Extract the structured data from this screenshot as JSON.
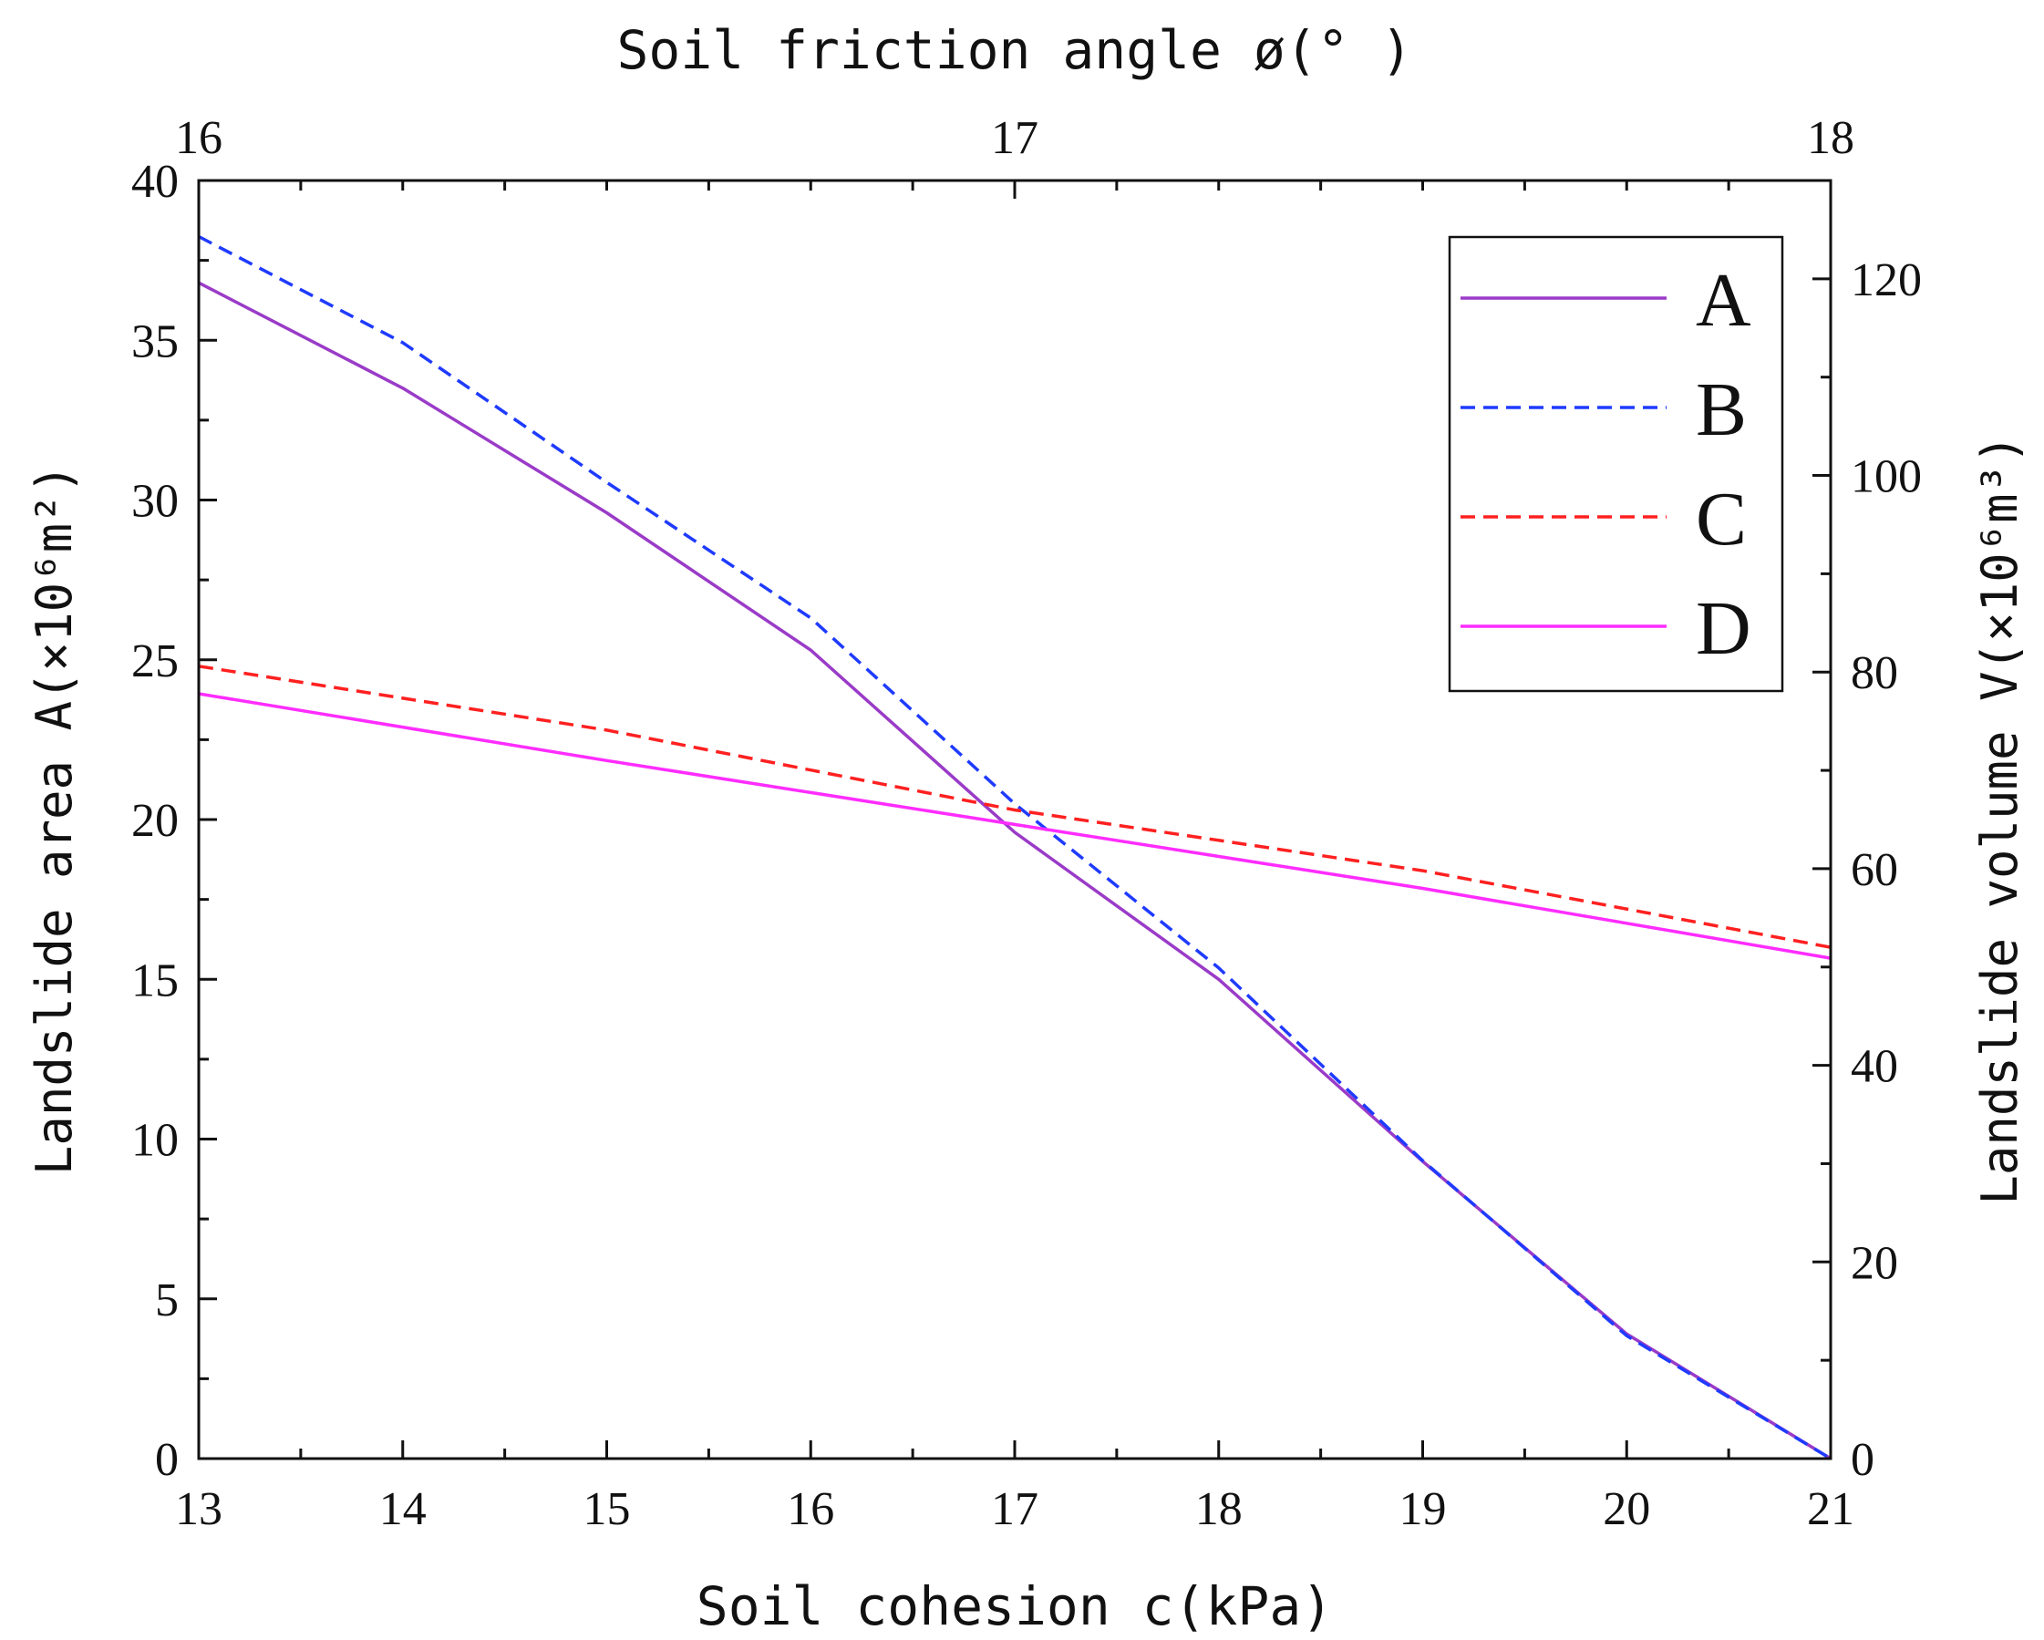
{
  "chart_data": {
    "type": "line",
    "x_bottom": {
      "label": "Soil cohesion c(kPa)",
      "range": [
        13,
        21
      ],
      "ticks": [
        "13",
        "14",
        "15",
        "16",
        "17",
        "18",
        "19",
        "20",
        "21"
      ]
    },
    "x_top": {
      "label": "Soil friction angle ø(° )",
      "range": [
        16,
        18
      ],
      "ticks": [
        "16",
        "17",
        "18"
      ]
    },
    "y_left": {
      "label": "Landslide area A(×10⁶m²)",
      "range": [
        0,
        40
      ],
      "ticks": [
        "0",
        "5",
        "10",
        "15",
        "20",
        "25",
        "30",
        "35",
        "40"
      ]
    },
    "y_right": {
      "label": "Landslide volume V(×10⁶m³)",
      "range": [
        0,
        130
      ],
      "ticks": [
        "0",
        "20",
        "40",
        "60",
        "80",
        "100",
        "120"
      ]
    },
    "legend_position": "top-right",
    "grid": false,
    "series": [
      {
        "name": "A",
        "style": "solid",
        "color": "#9a3bc8",
        "x_axis": "bottom",
        "y_axis": "left",
        "x": [
          13,
          14,
          15,
          16,
          17,
          18,
          19,
          20,
          21
        ],
        "values": [
          36.8,
          33.5,
          29.6,
          25.3,
          19.6,
          15.0,
          9.3,
          3.9,
          0.0
        ]
      },
      {
        "name": "B",
        "style": "dashed",
        "color": "#1f3bff",
        "x_axis": "bottom",
        "y_axis": "right",
        "x": [
          13,
          14,
          15,
          16,
          17,
          18,
          19,
          20,
          21
        ],
        "values": [
          124.3,
          113.5,
          99.3,
          85.5,
          66.6,
          49.9,
          30.3,
          12.5,
          0.0
        ]
      },
      {
        "name": "C",
        "style": "dashed",
        "color": "#ff2020",
        "x_axis": "top",
        "y_axis": "left",
        "x": [
          16,
          16.5,
          17,
          17.5,
          18
        ],
        "values": [
          24.8,
          22.8,
          20.3,
          18.4,
          16.0
        ]
      },
      {
        "name": "D",
        "style": "solid",
        "color": "#ff2cff",
        "x_axis": "top",
        "y_axis": "right",
        "x": [
          16,
          16.5,
          17,
          17.5,
          18
        ],
        "values": [
          77.8,
          71.0,
          64.5,
          58.0,
          50.9
        ]
      }
    ]
  }
}
